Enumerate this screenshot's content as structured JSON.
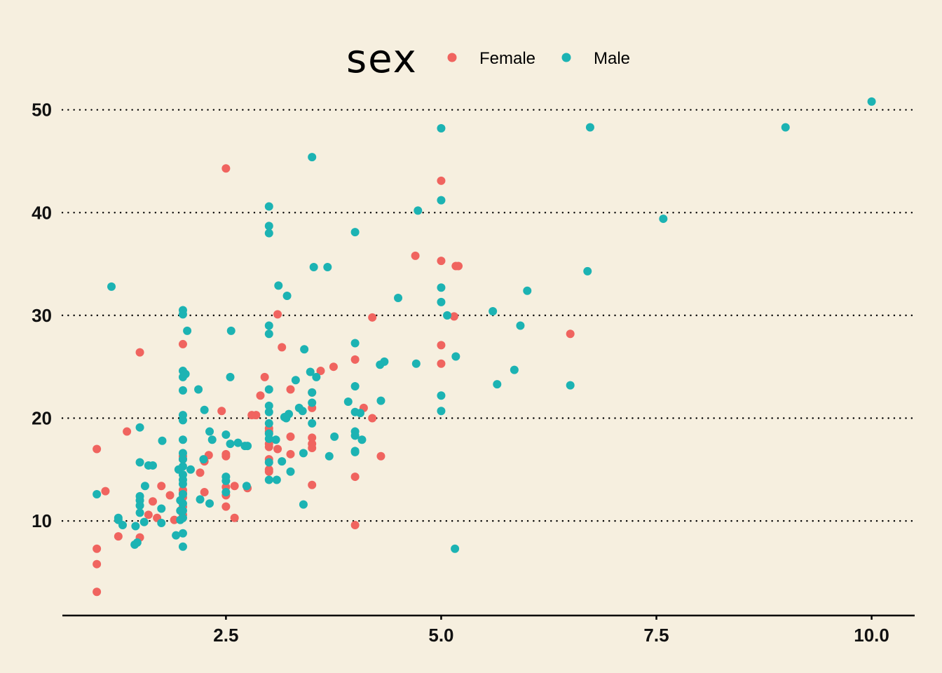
{
  "chart_data": {
    "type": "scatter",
    "title": "",
    "xlabel": "",
    "ylabel": "",
    "xlim": [
      0.6,
      10.5
    ],
    "ylim": [
      0.8,
      52.5
    ],
    "xticks": [
      2.5,
      5.0,
      7.5,
      10.0
    ],
    "xtick_labels": [
      "2.5",
      "5.0",
      "7.5",
      "10.0"
    ],
    "yticks": [
      10,
      20,
      30,
      40,
      50
    ],
    "ytick_labels": [
      "10",
      "20",
      "30",
      "40",
      "50"
    ],
    "grid": "horizontal dotted",
    "legend": {
      "title": "sex",
      "position": "top"
    },
    "series": [
      {
        "name": "Female",
        "color": "#f0645f",
        "points": [
          [
            1.0,
            3.1
          ],
          [
            1.0,
            5.8
          ],
          [
            1.0,
            7.3
          ],
          [
            1.0,
            17.0
          ],
          [
            1.1,
            12.9
          ],
          [
            1.25,
            8.5
          ],
          [
            1.35,
            18.7
          ],
          [
            1.5,
            26.4
          ],
          [
            1.5,
            8.4
          ],
          [
            1.6,
            10.6
          ],
          [
            1.65,
            11.9
          ],
          [
            1.7,
            10.3
          ],
          [
            1.75,
            13.4
          ],
          [
            1.85,
            12.5
          ],
          [
            1.9,
            10.1
          ],
          [
            2.0,
            27.2
          ],
          [
            2.0,
            16.3
          ],
          [
            2.0,
            16.0
          ],
          [
            2.0,
            13.0
          ],
          [
            2.0,
            12.7
          ],
          [
            2.0,
            12.3
          ],
          [
            2.0,
            11.4
          ],
          [
            2.0,
            10.6
          ],
          [
            2.2,
            14.7
          ],
          [
            2.25,
            12.8
          ],
          [
            2.25,
            15.8
          ],
          [
            2.3,
            16.4
          ],
          [
            2.45,
            20.7
          ],
          [
            2.5,
            44.3
          ],
          [
            2.5,
            16.5
          ],
          [
            2.5,
            16.3
          ],
          [
            2.5,
            13.3
          ],
          [
            2.5,
            12.5
          ],
          [
            2.5,
            11.4
          ],
          [
            2.6,
            10.3
          ],
          [
            2.6,
            13.4
          ],
          [
            2.75,
            13.2
          ],
          [
            2.8,
            20.3
          ],
          [
            2.85,
            20.3
          ],
          [
            2.9,
            22.2
          ],
          [
            2.95,
            24.0
          ],
          [
            3.0,
            19.0
          ],
          [
            3.0,
            18.7
          ],
          [
            3.0,
            17.5
          ],
          [
            3.0,
            17.2
          ],
          [
            3.0,
            16.0
          ],
          [
            3.0,
            15.0
          ],
          [
            3.0,
            14.8
          ],
          [
            3.1,
            30.1
          ],
          [
            3.1,
            17.0
          ],
          [
            3.15,
            26.9
          ],
          [
            3.25,
            22.8
          ],
          [
            3.25,
            18.2
          ],
          [
            3.25,
            16.5
          ],
          [
            3.5,
            22.5
          ],
          [
            3.5,
            21.0
          ],
          [
            3.5,
            18.1
          ],
          [
            3.5,
            17.5
          ],
          [
            3.5,
            17.1
          ],
          [
            3.5,
            13.5
          ],
          [
            3.6,
            24.6
          ],
          [
            3.75,
            25.0
          ],
          [
            4.0,
            25.7
          ],
          [
            4.0,
            14.3
          ],
          [
            4.0,
            9.6
          ],
          [
            4.1,
            21.0
          ],
          [
            4.2,
            29.8
          ],
          [
            4.2,
            20.0
          ],
          [
            4.3,
            16.3
          ],
          [
            4.7,
            35.8
          ],
          [
            5.0,
            43.1
          ],
          [
            5.0,
            35.3
          ],
          [
            5.0,
            27.1
          ],
          [
            5.0,
            25.3
          ],
          [
            5.15,
            29.9
          ],
          [
            5.17,
            34.8
          ],
          [
            5.2,
            34.8
          ],
          [
            6.5,
            28.2
          ]
        ]
      },
      {
        "name": "Male",
        "color": "#1cb3b3",
        "points": [
          [
            1.0,
            12.6
          ],
          [
            1.17,
            32.8
          ],
          [
            1.25,
            10.3
          ],
          [
            1.25,
            10.1
          ],
          [
            1.3,
            9.6
          ],
          [
            1.44,
            7.7
          ],
          [
            1.45,
            9.5
          ],
          [
            1.47,
            7.9
          ],
          [
            1.5,
            19.1
          ],
          [
            1.5,
            15.7
          ],
          [
            1.5,
            12.4
          ],
          [
            1.5,
            12.0
          ],
          [
            1.5,
            11.5
          ],
          [
            1.5,
            10.8
          ],
          [
            1.55,
            9.9
          ],
          [
            1.56,
            13.4
          ],
          [
            1.6,
            15.4
          ],
          [
            1.65,
            15.4
          ],
          [
            1.75,
            9.8
          ],
          [
            1.75,
            11.2
          ],
          [
            1.76,
            17.8
          ],
          [
            1.92,
            8.6
          ],
          [
            1.95,
            15.0
          ],
          [
            1.97,
            10.1
          ],
          [
            1.97,
            11.0
          ],
          [
            1.97,
            12.0
          ],
          [
            2.0,
            30.5
          ],
          [
            2.0,
            30.1
          ],
          [
            2.0,
            24.6
          ],
          [
            2.0,
            24.0
          ],
          [
            2.0,
            22.7
          ],
          [
            2.0,
            20.3
          ],
          [
            2.0,
            19.8
          ],
          [
            2.0,
            17.9
          ],
          [
            2.0,
            16.6
          ],
          [
            2.0,
            16.0
          ],
          [
            2.0,
            15.3
          ],
          [
            2.0,
            14.5
          ],
          [
            2.0,
            14.0
          ],
          [
            2.0,
            13.6
          ],
          [
            2.0,
            12.6
          ],
          [
            2.0,
            11.7
          ],
          [
            2.0,
            11.0
          ],
          [
            2.0,
            10.3
          ],
          [
            2.0,
            8.8
          ],
          [
            2.0,
            7.5
          ],
          [
            2.03,
            24.3
          ],
          [
            2.05,
            28.5
          ],
          [
            2.09,
            15.0
          ],
          [
            2.18,
            22.8
          ],
          [
            2.2,
            12.1
          ],
          [
            2.24,
            16.0
          ],
          [
            2.25,
            20.8
          ],
          [
            2.31,
            18.7
          ],
          [
            2.31,
            11.7
          ],
          [
            2.34,
            17.9
          ],
          [
            2.5,
            18.4
          ],
          [
            2.5,
            14.3
          ],
          [
            2.5,
            13.9
          ],
          [
            2.5,
            12.8
          ],
          [
            2.55,
            24.0
          ],
          [
            2.56,
            28.5
          ],
          [
            2.55,
            17.5
          ],
          [
            2.64,
            17.6
          ],
          [
            2.72,
            17.3
          ],
          [
            2.75,
            17.3
          ],
          [
            2.74,
            13.4
          ],
          [
            3.0,
            40.6
          ],
          [
            3.0,
            38.7
          ],
          [
            3.0,
            38.0
          ],
          [
            3.0,
            29.0
          ],
          [
            3.0,
            28.2
          ],
          [
            3.0,
            22.8
          ],
          [
            3.0,
            21.2
          ],
          [
            3.0,
            20.6
          ],
          [
            3.0,
            19.5
          ],
          [
            3.0,
            18.5
          ],
          [
            3.0,
            18.0
          ],
          [
            3.0,
            15.7
          ],
          [
            3.0,
            14.0
          ],
          [
            3.08,
            17.9
          ],
          [
            3.09,
            14.0
          ],
          [
            3.11,
            32.9
          ],
          [
            3.15,
            15.8
          ],
          [
            3.18,
            20.1
          ],
          [
            3.2,
            20.0
          ],
          [
            3.21,
            31.9
          ],
          [
            3.23,
            20.4
          ],
          [
            3.25,
            14.8
          ],
          [
            3.31,
            23.7
          ],
          [
            3.39,
            20.7
          ],
          [
            3.35,
            21.0
          ],
          [
            3.4,
            16.6
          ],
          [
            3.4,
            11.6
          ],
          [
            3.41,
            26.7
          ],
          [
            3.48,
            24.5
          ],
          [
            3.5,
            45.4
          ],
          [
            3.5,
            22.5
          ],
          [
            3.5,
            21.5
          ],
          [
            3.5,
            19.5
          ],
          [
            3.52,
            34.7
          ],
          [
            3.55,
            24.0
          ],
          [
            3.68,
            34.7
          ],
          [
            3.7,
            16.3
          ],
          [
            3.76,
            18.2
          ],
          [
            3.92,
            21.6
          ],
          [
            4.0,
            38.1
          ],
          [
            4.0,
            27.3
          ],
          [
            4.0,
            23.1
          ],
          [
            4.0,
            20.6
          ],
          [
            4.0,
            18.7
          ],
          [
            4.0,
            18.3
          ],
          [
            4.0,
            16.8
          ],
          [
            4.0,
            16.7
          ],
          [
            4.06,
            20.5
          ],
          [
            4.08,
            17.9
          ],
          [
            4.29,
            25.2
          ],
          [
            4.34,
            25.5
          ],
          [
            4.3,
            21.7
          ],
          [
            4.5,
            31.7
          ],
          [
            4.71,
            25.3
          ],
          [
            4.73,
            40.2
          ],
          [
            5.0,
            48.2
          ],
          [
            5.0,
            41.2
          ],
          [
            5.0,
            32.7
          ],
          [
            5.0,
            31.3
          ],
          [
            5.0,
            22.2
          ],
          [
            5.0,
            20.7
          ],
          [
            5.07,
            30.0
          ],
          [
            5.16,
            7.3
          ],
          [
            5.17,
            26.0
          ],
          [
            5.6,
            30.4
          ],
          [
            5.65,
            23.3
          ],
          [
            5.85,
            24.7
          ],
          [
            5.92,
            29.0
          ],
          [
            6.0,
            32.4
          ],
          [
            6.5,
            23.2
          ],
          [
            6.7,
            34.3
          ],
          [
            6.73,
            48.3
          ],
          [
            7.58,
            39.4
          ],
          [
            9.0,
            48.3
          ],
          [
            10.0,
            50.8
          ]
        ]
      }
    ]
  }
}
